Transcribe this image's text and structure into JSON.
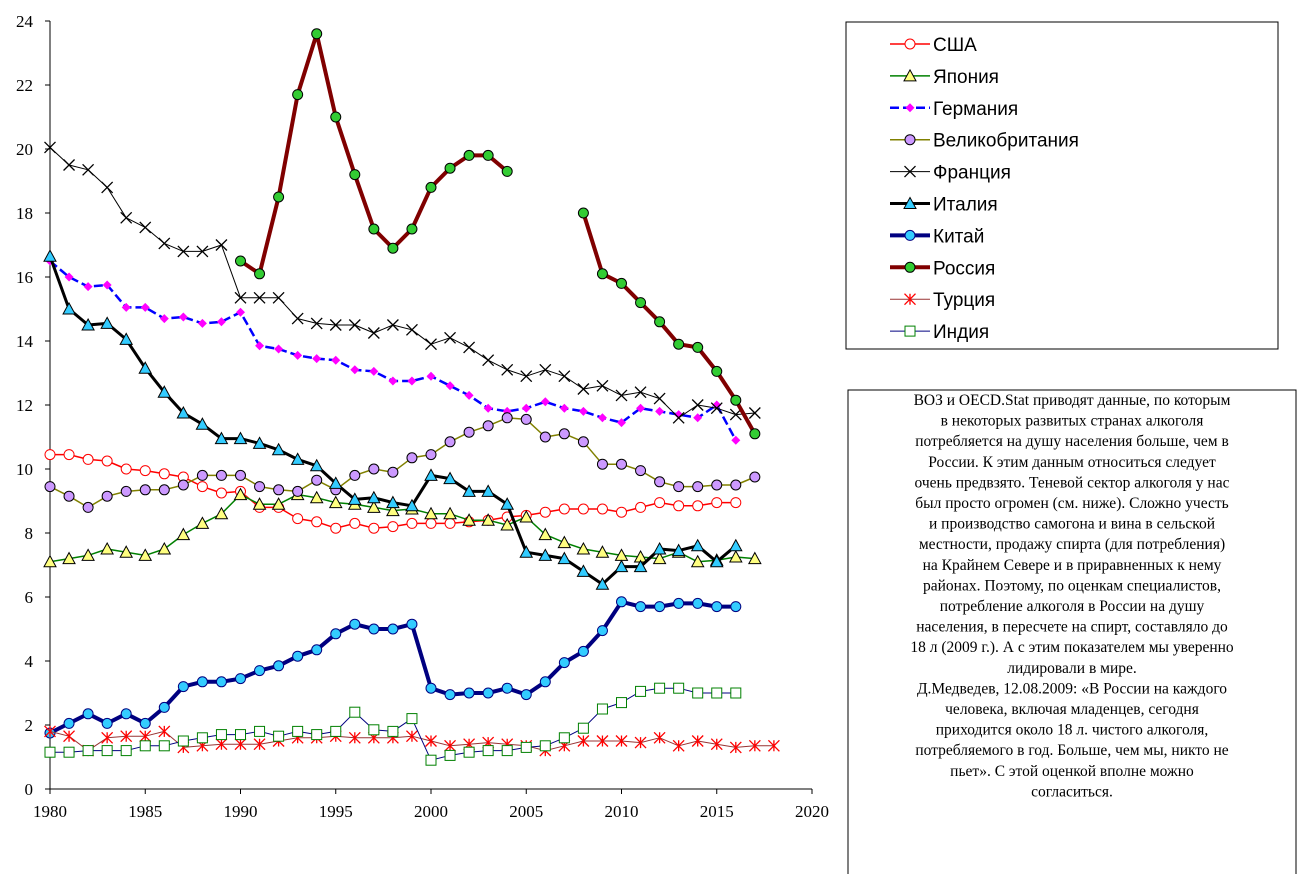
{
  "chart_data": {
    "type": "line",
    "x": [
      1980,
      1981,
      1982,
      1983,
      1984,
      1985,
      1986,
      1987,
      1988,
      1989,
      1990,
      1991,
      1992,
      1993,
      1994,
      1995,
      1996,
      1997,
      1998,
      1999,
      2000,
      2001,
      2002,
      2003,
      2004,
      2005,
      2006,
      2007,
      2008,
      2009,
      2010,
      2011,
      2012,
      2013,
      2014,
      2015,
      2016,
      2017,
      2018
    ],
    "xlim": [
      1980,
      2020
    ],
    "xticks": [
      1980,
      1985,
      1990,
      1995,
      2000,
      2005,
      2010,
      2015,
      2020
    ],
    "ylim": [
      0,
      24
    ],
    "yticks": [
      0,
      2,
      4,
      6,
      8,
      10,
      12,
      14,
      16,
      18,
      20,
      22,
      24
    ],
    "series": [
      {
        "name": "США",
        "color": "#ff0000",
        "marker": "circle",
        "marker_fill": "#ffffff",
        "marker_stroke": "#ff0000",
        "line_width": 1.5,
        "values": [
          10.45,
          10.45,
          10.3,
          10.25,
          10.0,
          9.95,
          9.85,
          9.75,
          9.45,
          9.25,
          9.3,
          8.8,
          8.8,
          8.45,
          8.35,
          8.15,
          8.3,
          8.15,
          8.2,
          8.3,
          8.3,
          8.3,
          8.35,
          8.4,
          8.5,
          8.55,
          8.65,
          8.75,
          8.75,
          8.75,
          8.65,
          8.8,
          8.95,
          8.85,
          8.85,
          8.95,
          8.95,
          null,
          null
        ]
      },
      {
        "name": "Япония",
        "color": "#008000",
        "marker": "triangle",
        "marker_fill": "#ffff80",
        "marker_stroke": "#000000",
        "line_width": 1.5,
        "values": [
          7.1,
          7.2,
          7.3,
          7.5,
          7.4,
          7.3,
          7.5,
          7.95,
          8.3,
          8.6,
          9.2,
          8.9,
          8.9,
          9.2,
          9.1,
          8.95,
          8.9,
          8.8,
          8.7,
          8.75,
          8.6,
          8.6,
          8.4,
          8.4,
          8.25,
          8.5,
          7.95,
          7.7,
          7.5,
          7.4,
          7.3,
          7.25,
          7.2,
          7.4,
          7.1,
          7.15,
          7.25,
          7.2,
          null
        ]
      },
      {
        "name": "Германия",
        "color": "#0000ff",
        "marker": "diamond",
        "marker_fill": "#ff00ff",
        "marker_stroke": "none",
        "line_width": 2.5,
        "dashed": true,
        "values": [
          16.5,
          16.0,
          15.7,
          15.75,
          15.05,
          15.05,
          14.7,
          14.75,
          14.55,
          14.6,
          14.9,
          13.85,
          13.75,
          13.55,
          13.45,
          13.4,
          13.1,
          13.05,
          12.75,
          12.75,
          12.9,
          12.6,
          12.3,
          11.9,
          11.8,
          11.9,
          12.1,
          11.9,
          11.8,
          11.6,
          11.45,
          11.9,
          11.8,
          11.7,
          11.6,
          12.0,
          10.9,
          null,
          null
        ]
      },
      {
        "name": "Великобритания",
        "color": "#808000",
        "marker": "circle",
        "marker_fill": "#cc99ff",
        "marker_stroke": "#000000",
        "line_width": 1.5,
        "values": [
          9.45,
          9.15,
          8.8,
          9.15,
          9.3,
          9.35,
          9.35,
          9.5,
          9.8,
          9.8,
          9.8,
          9.45,
          9.35,
          9.3,
          9.65,
          9.35,
          9.8,
          10.0,
          9.9,
          10.35,
          10.45,
          10.85,
          11.15,
          11.35,
          11.6,
          11.55,
          11.0,
          11.1,
          10.85,
          10.15,
          10.15,
          9.95,
          9.6,
          9.45,
          9.45,
          9.5,
          9.5,
          9.75,
          null
        ]
      },
      {
        "name": "Франция",
        "color": "#000000",
        "marker": "x",
        "marker_fill": "none",
        "marker_stroke": "#000000",
        "line_width": 1,
        "values": [
          20.05,
          19.5,
          19.35,
          18.8,
          17.85,
          17.55,
          17.05,
          16.8,
          16.8,
          17.0,
          15.35,
          15.35,
          15.35,
          14.7,
          14.55,
          14.5,
          14.5,
          14.25,
          14.5,
          14.35,
          13.9,
          14.1,
          13.8,
          13.4,
          13.1,
          12.9,
          13.1,
          12.9,
          12.5,
          12.6,
          12.3,
          12.4,
          12.2,
          11.6,
          12.0,
          11.9,
          11.7,
          11.75,
          null
        ]
      },
      {
        "name": "Италия",
        "color": "#000000",
        "marker": "triangle",
        "marker_fill": "#33ccff",
        "marker_stroke": "#000000",
        "line_width": 3,
        "values": [
          16.65,
          15.0,
          14.5,
          14.55,
          14.05,
          13.15,
          12.4,
          11.75,
          11.4,
          10.95,
          10.95,
          10.8,
          10.6,
          10.3,
          10.1,
          9.55,
          9.05,
          9.1,
          8.95,
          8.85,
          9.8,
          9.7,
          9.3,
          9.3,
          8.9,
          7.4,
          7.3,
          7.2,
          6.8,
          6.4,
          6.95,
          6.95,
          7.5,
          7.45,
          7.6,
          7.1,
          7.6,
          null,
          null
        ]
      },
      {
        "name": "Китай",
        "color": "#000080",
        "marker": "circle",
        "marker_fill": "#33ccff",
        "marker_stroke": "#000080",
        "line_width": 4,
        "values": [
          1.75,
          2.05,
          2.35,
          2.05,
          2.35,
          2.05,
          2.55,
          3.2,
          3.35,
          3.35,
          3.45,
          3.7,
          3.85,
          4.15,
          4.35,
          4.85,
          5.15,
          5.0,
          5.0,
          5.15,
          3.15,
          2.95,
          3.0,
          3.0,
          3.15,
          2.95,
          3.35,
          3.95,
          4.3,
          4.95,
          5.85,
          5.7,
          5.7,
          5.8,
          5.8,
          5.7,
          5.7,
          null,
          null
        ]
      },
      {
        "name": "Россия",
        "color": "#800000",
        "marker": "circle",
        "marker_fill": "#33cc33",
        "marker_stroke": "#000000",
        "line_width": 4,
        "values": [
          null,
          null,
          null,
          null,
          null,
          null,
          null,
          null,
          null,
          null,
          16.5,
          16.1,
          18.5,
          21.7,
          23.6,
          21.0,
          19.2,
          17.5,
          16.9,
          17.5,
          18.8,
          19.4,
          19.8,
          19.8,
          19.3,
          null,
          null,
          null,
          18.0,
          16.1,
          15.8,
          15.2,
          14.6,
          13.9,
          13.8,
          13.05,
          12.15,
          11.1,
          null
        ]
      },
      {
        "name": "Турция",
        "color": "#993333",
        "marker": "asterisk",
        "marker_fill": "none",
        "marker_stroke": "#ff0000",
        "line_width": 1,
        "values": [
          1.8,
          1.65,
          1.2,
          1.6,
          1.65,
          1.65,
          1.8,
          1.3,
          1.35,
          1.4,
          1.4,
          1.4,
          1.5,
          1.6,
          1.6,
          1.65,
          1.6,
          1.6,
          1.6,
          1.65,
          1.5,
          1.35,
          1.4,
          1.45,
          1.4,
          1.35,
          1.2,
          1.35,
          1.5,
          1.5,
          1.5,
          1.45,
          1.6,
          1.35,
          1.5,
          1.4,
          1.3,
          1.35,
          1.35
        ]
      },
      {
        "name": "Индия",
        "color": "#000080",
        "marker": "square",
        "marker_fill": "#ffffff",
        "marker_stroke": "#008000",
        "line_width": 1,
        "values": [
          1.15,
          1.15,
          1.2,
          1.2,
          1.2,
          1.35,
          1.35,
          1.5,
          1.6,
          1.7,
          1.7,
          1.8,
          1.65,
          1.8,
          1.7,
          1.8,
          2.4,
          1.85,
          1.8,
          2.2,
          0.9,
          1.05,
          1.15,
          1.2,
          1.2,
          1.3,
          1.35,
          1.6,
          1.9,
          2.5,
          2.7,
          3.05,
          3.15,
          3.15,
          3.0,
          3.0,
          3.0,
          null,
          null
        ]
      }
    ],
    "note_lines": [
      "ВОЗ и OECD.Stat приводят данные, по которым",
      "в некоторых развитых странах алкоголя",
      "потребляется на душу населения больше, чем в",
      "России. К этим данным относиться следует",
      "очень предвзято.  Теневой сектор алкоголя у нас",
      "был  просто огромен (см. ниже). Сложно учесть",
      "и  производство самогона и вина в сельской",
      "местности,  продажу спирта (для потребления)",
      "на Крайнем Севере и в приравненных к нему",
      "районах.  Поэтому, по оценкам специалистов,",
      "потребление алкоголя в России на душу",
      "населения, в пересчете на спирт, составляло до",
      "18 л (2009 г.). А с этим показателем мы уверенно",
      "лидировали в мире.",
      "Д.Медведев, 12.08.2009: «В России на каждого",
      "человека, включая младенцев, сегодня",
      "приходится около 18 л. чистого алкоголя,",
      "потребляемого в год. Больше, чем мы, никто не",
      "пьет». С этой оценкой вполне можно",
      "согласиться."
    ]
  }
}
